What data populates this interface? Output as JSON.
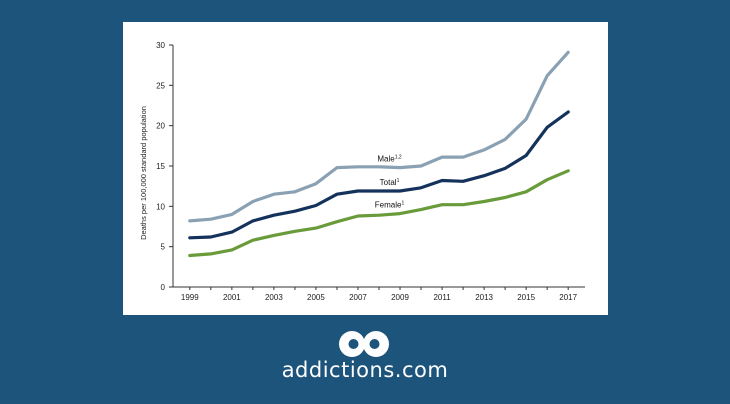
{
  "brand": {
    "name": "addictions.com",
    "logo_icon": "infinity-loop-logo-icon"
  },
  "chart_data": {
    "type": "line",
    "ylabel": "Deaths per 100,000 standard population",
    "ylim": [
      0,
      30
    ],
    "yticks": [
      0,
      5,
      10,
      15,
      20,
      25,
      30
    ],
    "xlim": [
      1998.2,
      2017.8
    ],
    "xticks": [
      1999,
      2001,
      2003,
      2005,
      2007,
      2009,
      2011,
      2013,
      2015,
      2017
    ],
    "x": [
      1999,
      2000,
      2001,
      2002,
      2003,
      2004,
      2005,
      2006,
      2007,
      2008,
      2009,
      2010,
      2011,
      2012,
      2013,
      2014,
      2015,
      2016,
      2017
    ],
    "series": [
      {
        "name": "Male",
        "sup": "1,2",
        "color": "#8aa1b4",
        "values": [
          8.2,
          8.4,
          9.0,
          10.6,
          11.5,
          11.8,
          12.8,
          14.8,
          14.9,
          14.9,
          14.8,
          15.0,
          16.1,
          16.1,
          17.0,
          18.3,
          20.8,
          26.2,
          29.1
        ]
      },
      {
        "name": "Total",
        "sup": "1",
        "color": "#14325b",
        "values": [
          6.1,
          6.2,
          6.8,
          8.2,
          8.9,
          9.4,
          10.1,
          11.5,
          11.9,
          11.9,
          11.9,
          12.3,
          13.2,
          13.1,
          13.8,
          14.7,
          16.3,
          19.8,
          21.7
        ]
      },
      {
        "name": "Female",
        "sup": "1",
        "color": "#6a9b3a",
        "values": [
          3.9,
          4.1,
          4.6,
          5.8,
          6.4,
          6.9,
          7.3,
          8.1,
          8.8,
          8.9,
          9.1,
          9.6,
          10.2,
          10.2,
          10.6,
          11.1,
          11.8,
          13.3,
          14.4
        ]
      }
    ]
  }
}
